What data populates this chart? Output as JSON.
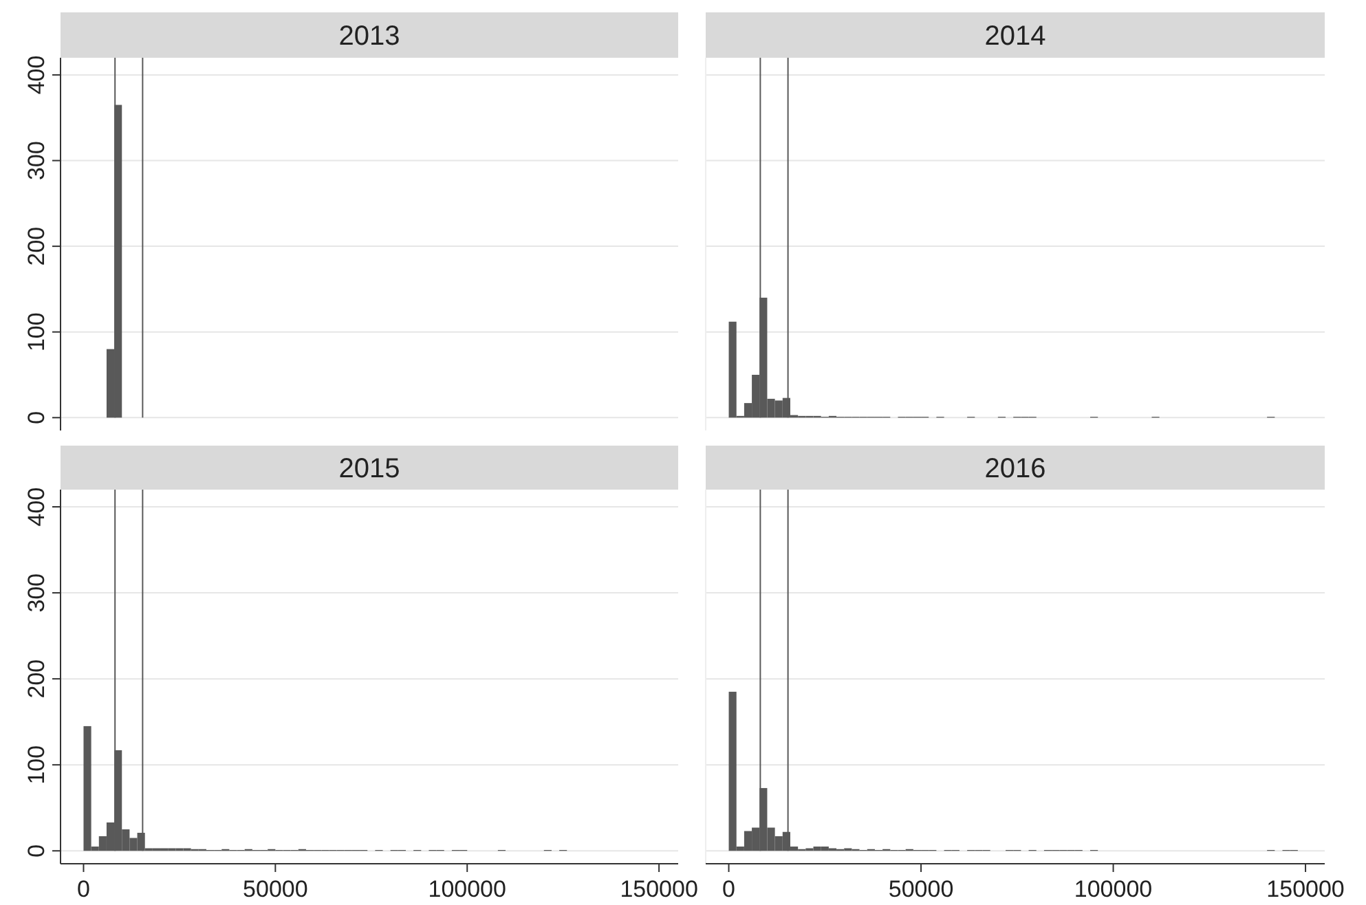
{
  "chart_data": [
    {
      "type": "histogram",
      "title": "2013",
      "bins": [
        0,
        2000,
        4000,
        6000,
        8000,
        10000,
        12000,
        14000,
        16000,
        18000,
        20000,
        22000,
        24000,
        26000,
        28000,
        30000,
        32000,
        34000,
        36000,
        38000,
        40000,
        42000,
        44000,
        46000,
        48000,
        50000,
        52000,
        54000,
        56000,
        58000,
        60000,
        62000,
        64000,
        66000,
        68000,
        70000,
        72000,
        74000,
        76000,
        78000,
        80000,
        82000,
        84000,
        86000,
        88000,
        90000,
        92000,
        94000,
        96000,
        98000,
        100000,
        102000,
        104000,
        106000,
        108000,
        110000,
        112000,
        114000,
        116000,
        118000,
        120000,
        122000,
        124000,
        126000,
        128000,
        130000,
        132000,
        134000,
        136000,
        138000,
        140000,
        142000,
        144000,
        146000,
        148000,
        150000
      ],
      "values": [
        0,
        0,
        0,
        80,
        365,
        0,
        0,
        0,
        0,
        0,
        0,
        0,
        0,
        0,
        0,
        0,
        0,
        0,
        0,
        0,
        0,
        0,
        0,
        0,
        0,
        0,
        0,
        0,
        0,
        0,
        0,
        0,
        0,
        0,
        0,
        0,
        0,
        0,
        0,
        0,
        0,
        0,
        0,
        0,
        0,
        0,
        0,
        0,
        0,
        0,
        0,
        0,
        0,
        0,
        0,
        0,
        0,
        0,
        0,
        0,
        0,
        0,
        0,
        0,
        0,
        0,
        0,
        0,
        0,
        0,
        0,
        0,
        0,
        0,
        0
      ],
      "color": "#595959",
      "xlim": [
        -6000,
        155000
      ],
      "ylim": [
        -15,
        420
      ],
      "yticks": [
        0,
        100,
        200,
        300,
        400
      ],
      "grid": "y",
      "tick_labels": "y",
      "ref_lines": [
        {
          "axis": "x",
          "value": 8200,
          "color": "#595959"
        },
        {
          "axis": "x",
          "value": 15400,
          "color": "#595959"
        }
      ]
    },
    {
      "type": "histogram",
      "title": "2014",
      "bins": [
        0,
        2000,
        4000,
        6000,
        8000,
        10000,
        12000,
        14000,
        16000,
        18000,
        20000,
        22000,
        24000,
        26000,
        28000,
        30000,
        32000,
        34000,
        36000,
        38000,
        40000,
        42000,
        44000,
        46000,
        48000,
        50000,
        52000,
        54000,
        56000,
        58000,
        60000,
        62000,
        64000,
        66000,
        68000,
        70000,
        72000,
        74000,
        76000,
        78000,
        80000,
        82000,
        84000,
        86000,
        88000,
        90000,
        92000,
        94000,
        96000,
        98000,
        100000,
        102000,
        104000,
        106000,
        108000,
        110000,
        112000,
        114000,
        116000,
        118000,
        120000,
        122000,
        124000,
        126000,
        128000,
        130000,
        132000,
        134000,
        136000,
        138000,
        140000,
        142000,
        144000,
        146000,
        148000,
        150000
      ],
      "values": [
        112,
        2,
        17,
        50,
        140,
        22,
        20,
        23,
        3,
        2,
        2,
        2,
        1,
        2,
        1,
        1,
        1,
        1,
        1,
        1,
        1,
        0,
        1,
        1,
        1,
        1,
        0,
        1,
        0,
        0,
        0,
        1,
        0,
        0,
        0,
        1,
        0,
        1,
        1,
        1,
        0,
        0,
        0,
        0,
        0,
        0,
        0,
        1,
        0,
        0,
        0,
        0,
        0,
        0,
        0,
        1,
        0,
        0,
        0,
        0,
        0,
        0,
        0,
        0,
        0,
        0,
        0,
        0,
        0,
        0,
        1,
        0,
        0,
        0,
        0
      ],
      "color": "#595959",
      "xlim": [
        -6000,
        155000
      ],
      "ylim": [
        -15,
        420
      ],
      "yticks": [
        0,
        100,
        200,
        300,
        400
      ],
      "grid": "y",
      "tick_labels": false,
      "ref_lines": [
        {
          "axis": "x",
          "value": 8200,
          "color": "#595959"
        },
        {
          "axis": "x",
          "value": 15400,
          "color": "#595959"
        }
      ]
    },
    {
      "type": "histogram",
      "title": "2015",
      "bins": [
        0,
        2000,
        4000,
        6000,
        8000,
        10000,
        12000,
        14000,
        16000,
        18000,
        20000,
        22000,
        24000,
        26000,
        28000,
        30000,
        32000,
        34000,
        36000,
        38000,
        40000,
        42000,
        44000,
        46000,
        48000,
        50000,
        52000,
        54000,
        56000,
        58000,
        60000,
        62000,
        64000,
        66000,
        68000,
        70000,
        72000,
        74000,
        76000,
        78000,
        80000,
        82000,
        84000,
        86000,
        88000,
        90000,
        92000,
        94000,
        96000,
        98000,
        100000,
        102000,
        104000,
        106000,
        108000,
        110000,
        112000,
        114000,
        116000,
        118000,
        120000,
        122000,
        124000,
        126000,
        128000,
        130000,
        132000,
        134000,
        136000,
        138000,
        140000,
        142000,
        144000,
        146000,
        148000,
        150000
      ],
      "values": [
        145,
        5,
        17,
        33,
        117,
        25,
        15,
        21,
        3,
        3,
        3,
        3,
        3,
        3,
        2,
        2,
        1,
        1,
        2,
        1,
        1,
        2,
        1,
        1,
        2,
        1,
        1,
        1,
        2,
        1,
        1,
        1,
        1,
        1,
        1,
        1,
        1,
        0,
        1,
        0,
        1,
        1,
        0,
        1,
        0,
        1,
        1,
        0,
        1,
        1,
        0,
        0,
        0,
        0,
        1,
        0,
        0,
        0,
        0,
        0,
        1,
        0,
        1,
        0,
        0,
        0,
        0,
        0,
        0,
        0,
        0,
        0,
        0,
        0,
        0
      ],
      "color": "#595959",
      "xlim": [
        -6000,
        155000
      ],
      "ylim": [
        -15,
        420
      ],
      "xticks": [
        0,
        50000,
        100000,
        150000
      ],
      "yticks": [
        0,
        100,
        200,
        300,
        400
      ],
      "grid": "y",
      "ref_lines": [
        {
          "axis": "x",
          "value": 8200,
          "color": "#595959"
        },
        {
          "axis": "x",
          "value": 15400,
          "color": "#595959"
        }
      ]
    },
    {
      "type": "histogram",
      "title": "2016",
      "bins": [
        0,
        2000,
        4000,
        6000,
        8000,
        10000,
        12000,
        14000,
        16000,
        18000,
        20000,
        22000,
        24000,
        26000,
        28000,
        30000,
        32000,
        34000,
        36000,
        38000,
        40000,
        42000,
        44000,
        46000,
        48000,
        50000,
        52000,
        54000,
        56000,
        58000,
        60000,
        62000,
        64000,
        66000,
        68000,
        70000,
        72000,
        74000,
        76000,
        78000,
        80000,
        82000,
        84000,
        86000,
        88000,
        90000,
        92000,
        94000,
        96000,
        98000,
        100000,
        102000,
        104000,
        106000,
        108000,
        110000,
        112000,
        114000,
        116000,
        118000,
        120000,
        122000,
        124000,
        126000,
        128000,
        130000,
        132000,
        134000,
        136000,
        138000,
        140000,
        142000,
        144000,
        146000,
        148000,
        150000
      ],
      "values": [
        185,
        5,
        23,
        27,
        73,
        27,
        17,
        22,
        5,
        2,
        3,
        5,
        5,
        3,
        2,
        3,
        2,
        1,
        2,
        1,
        2,
        1,
        1,
        2,
        1,
        1,
        1,
        0,
        1,
        1,
        0,
        1,
        1,
        1,
        0,
        0,
        1,
        1,
        0,
        1,
        0,
        1,
        1,
        1,
        1,
        1,
        0,
        1,
        0,
        0,
        0,
        0,
        0,
        0,
        0,
        0,
        0,
        0,
        0,
        0,
        0,
        0,
        0,
        0,
        0,
        0,
        0,
        0,
        0,
        0,
        1,
        0,
        1,
        1,
        0
      ],
      "color": "#595959",
      "xlim": [
        -6000,
        155000
      ],
      "ylim": [
        -15,
        420
      ],
      "xticks": [
        0,
        50000,
        100000,
        150000
      ],
      "yticks": [
        0,
        100,
        200,
        300,
        400
      ],
      "grid": "y",
      "tick_labels": "x",
      "ref_lines": [
        {
          "axis": "x",
          "value": 8200,
          "color": "#595959"
        },
        {
          "axis": "x",
          "value": 15400,
          "color": "#595959"
        }
      ]
    }
  ]
}
